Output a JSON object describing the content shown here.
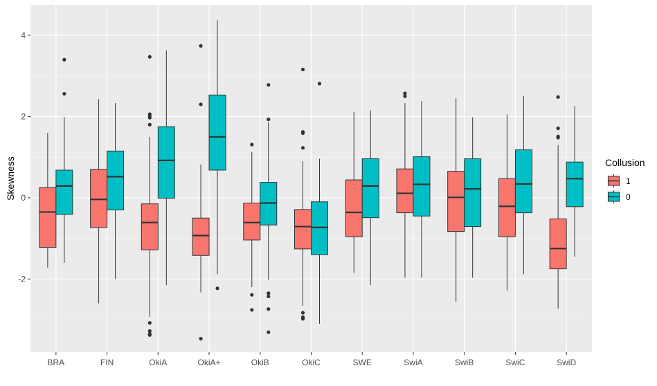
{
  "chart_data": {
    "type": "boxplot",
    "title": "",
    "xlabel": "",
    "ylabel": "Skewness",
    "ylim": [
      -3.8,
      4.75
    ],
    "yticks": [
      -2,
      0,
      2,
      4
    ],
    "ytick_labels": [
      "-2",
      "0",
      "2",
      "4"
    ],
    "categories": [
      "BRA",
      "FIN",
      "OkiA",
      "OkiA+",
      "OkiB",
      "OkiC",
      "SWE",
      "SwiA",
      "SwiB",
      "SwiC",
      "SwiD"
    ],
    "legend": {
      "title": "Collusion",
      "position": "right"
    },
    "series": [
      {
        "name": "1",
        "color": "#F8766D",
        "boxes": [
          {
            "lower_whisker": -1.72,
            "q1": -1.22,
            "median": -0.35,
            "q3": 0.25,
            "upper_whisker": 1.6,
            "outliers": []
          },
          {
            "lower_whisker": -2.6,
            "q1": -0.73,
            "median": -0.04,
            "q3": 0.7,
            "upper_whisker": 2.43,
            "outliers": []
          },
          {
            "lower_whisker": -2.93,
            "q1": -1.28,
            "median": -0.61,
            "q3": -0.15,
            "upper_whisker": 1.5,
            "outliers": [
              3.47,
              2.06,
              2.01,
              1.97,
              1.8,
              -3.08,
              -3.28,
              -3.35,
              -3.38
            ]
          },
          {
            "lower_whisker": -2.33,
            "q1": -1.42,
            "median": -0.93,
            "q3": -0.5,
            "upper_whisker": 0.82,
            "outliers": [
              3.74,
              2.3,
              -3.47
            ]
          },
          {
            "lower_whisker": -2.2,
            "q1": -1.04,
            "median": -0.61,
            "q3": -0.13,
            "upper_whisker": 1.13,
            "outliers": [
              1.31,
              -2.39,
              -2.76
            ]
          },
          {
            "lower_whisker": -2.66,
            "q1": -1.26,
            "median": -0.71,
            "q3": -0.29,
            "upper_whisker": 0.9,
            "outliers": [
              3.16,
              1.62,
              1.59,
              1.23,
              -2.83,
              -2.94,
              -2.98
            ]
          },
          {
            "lower_whisker": -1.85,
            "q1": -0.96,
            "median": -0.36,
            "q3": 0.44,
            "upper_whisker": 2.11,
            "outliers": []
          },
          {
            "lower_whisker": -1.97,
            "q1": -0.37,
            "median": 0.11,
            "q3": 0.71,
            "upper_whisker": 2.33,
            "outliers": [
              2.57,
              2.5
            ]
          },
          {
            "lower_whisker": -2.56,
            "q1": -0.83,
            "median": 0.01,
            "q3": 0.65,
            "upper_whisker": 2.45,
            "outliers": []
          },
          {
            "lower_whisker": -2.28,
            "q1": -0.96,
            "median": -0.21,
            "q3": 0.47,
            "upper_whisker": 2.05,
            "outliers": []
          },
          {
            "lower_whisker": -2.73,
            "q1": -1.75,
            "median": -1.25,
            "q3": -0.52,
            "upper_whisker": 1.3,
            "outliers": [
              2.48,
              1.71,
              1.51,
              1.48
            ]
          }
        ]
      },
      {
        "name": "0",
        "color": "#00BFC4",
        "boxes": [
          {
            "lower_whisker": -1.6,
            "q1": -0.41,
            "median": 0.29,
            "q3": 0.68,
            "upper_whisker": 1.99,
            "outliers": [
              3.4,
              2.56
            ]
          },
          {
            "lower_whisker": -2.0,
            "q1": -0.3,
            "median": 0.52,
            "q3": 1.15,
            "upper_whisker": 2.33,
            "outliers": []
          },
          {
            "lower_whisker": -2.15,
            "q1": -0.01,
            "median": 0.92,
            "q3": 1.75,
            "upper_whisker": 3.63,
            "outliers": []
          },
          {
            "lower_whisker": -1.88,
            "q1": 0.68,
            "median": 1.5,
            "q3": 2.53,
            "upper_whisker": 4.37,
            "outliers": [
              -2.23
            ]
          },
          {
            "lower_whisker": -2.02,
            "q1": -0.67,
            "median": -0.13,
            "q3": 0.38,
            "upper_whisker": 1.86,
            "outliers": [
              2.78,
              1.93,
              -2.35,
              -2.43,
              -2.74,
              -3.31
            ]
          },
          {
            "lower_whisker": -3.1,
            "q1": -1.4,
            "median": -0.73,
            "q3": -0.1,
            "upper_whisker": 0.96,
            "outliers": [
              2.81
            ]
          },
          {
            "lower_whisker": -2.15,
            "q1": -0.49,
            "median": 0.29,
            "q3": 0.96,
            "upper_whisker": 2.15,
            "outliers": []
          },
          {
            "lower_whisker": -1.97,
            "q1": -0.45,
            "median": 0.33,
            "q3": 1.01,
            "upper_whisker": 2.38,
            "outliers": []
          },
          {
            "lower_whisker": -1.97,
            "q1": -0.71,
            "median": 0.22,
            "q3": 0.96,
            "upper_whisker": 1.98,
            "outliers": []
          },
          {
            "lower_whisker": -1.88,
            "q1": -0.37,
            "median": 0.34,
            "q3": 1.18,
            "upper_whisker": 2.5,
            "outliers": []
          },
          {
            "lower_whisker": -1.45,
            "q1": -0.22,
            "median": 0.47,
            "q3": 0.88,
            "upper_whisker": 2.26,
            "outliers": []
          }
        ]
      }
    ]
  }
}
